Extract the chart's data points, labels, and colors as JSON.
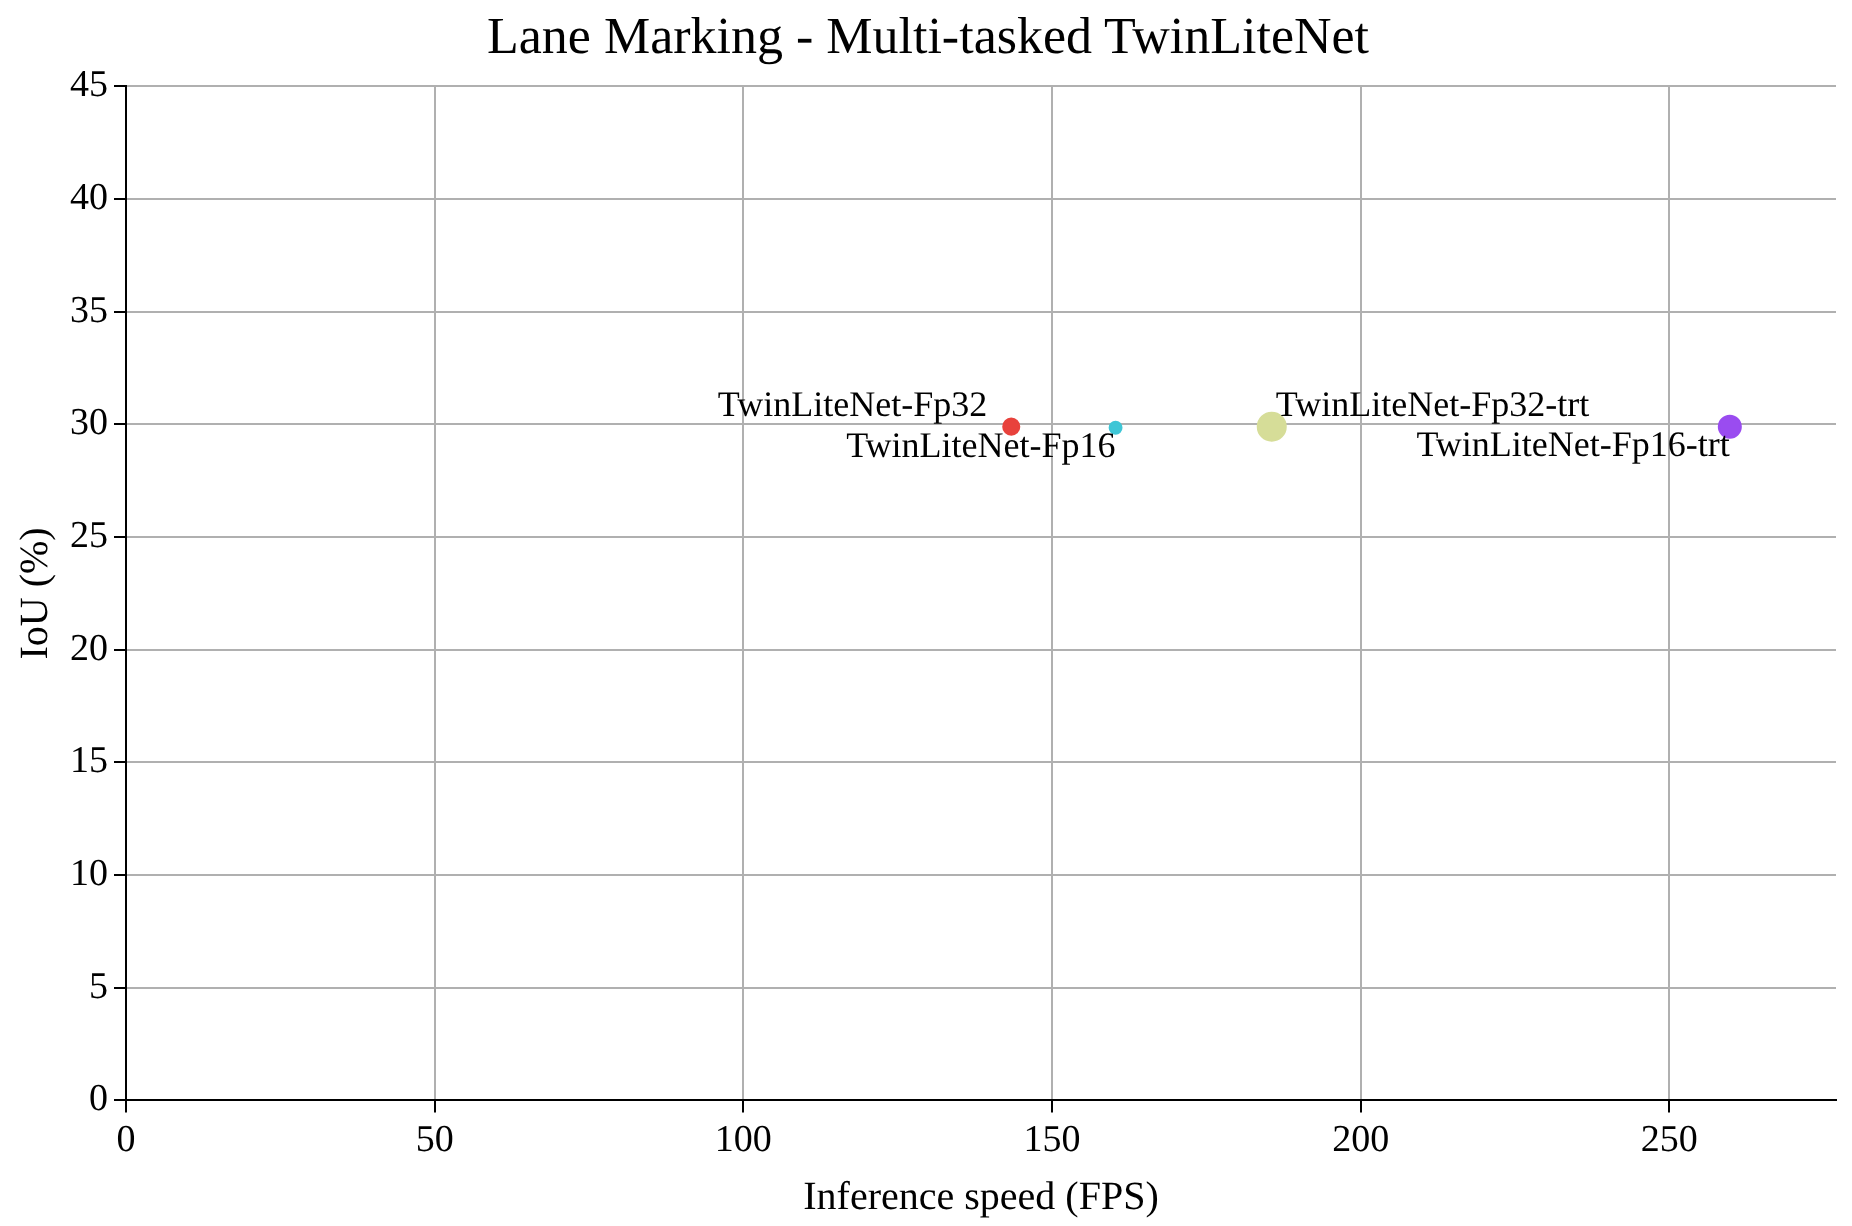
{
  "chart_data": {
    "type": "bubble",
    "title": "Lane Marking - Multi-tasked TwinLiteNet",
    "xlabel": "Inference speed (FPS)",
    "ylabel": "IoU (%)",
    "series": [
      {
        "name": "TwinLiteNet-Fp32",
        "color": "#e8423c",
        "x": [
          143.4
        ],
        "values": [
          29.9
        ],
        "sizes": [
          0.33
        ]
      },
      {
        "name": "TwinLiteNet-Fp16",
        "color": "#3ec6d6",
        "x": [
          160.3
        ],
        "values": [
          29.85
        ],
        "sizes": [
          0.18
        ]
      },
      {
        "name": "TwinLiteNet-Fp32-trt",
        "color": "#d6dd98",
        "x": [
          185.6
        ],
        "values": [
          29.9
        ],
        "sizes": [
          1
        ]
      },
      {
        "name": "TwinLiteNet-Fp16-trt",
        "color": "#9a4cf0",
        "x": [
          259.8
        ],
        "values": [
          29.9
        ],
        "sizes": [
          0.62
        ]
      }
    ],
    "xlim": [
      0,
      277
    ],
    "xticks": [
      0,
      50,
      100,
      150,
      200,
      250
    ],
    "ylim": [
      0,
      45
    ],
    "yticks": [
      0,
      5,
      10,
      15,
      20,
      25,
      30,
      35,
      40,
      45
    ],
    "grid": true,
    "legend": false
  }
}
